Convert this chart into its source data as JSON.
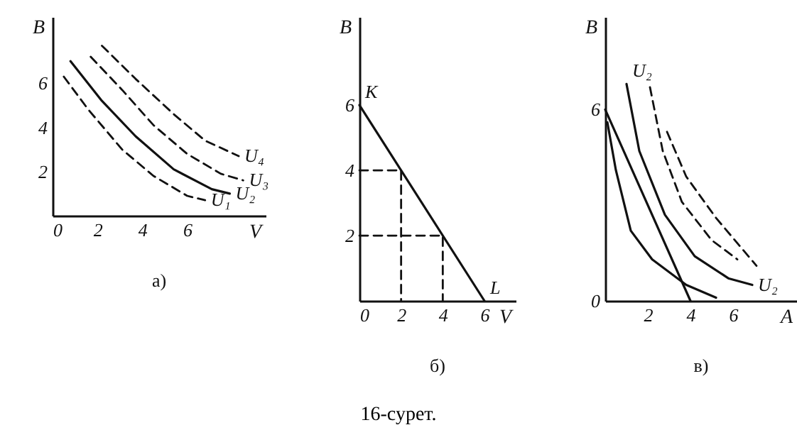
{
  "chart_data": [
    {
      "type": "line",
      "title": "а)",
      "xlabel": "V",
      "ylabel": "В",
      "xlim": [
        0,
        9.5
      ],
      "ylim": [
        0,
        9
      ],
      "xticks": [
        0,
        2,
        4,
        6
      ],
      "yticks": [
        2,
        4,
        6
      ],
      "grid": false,
      "marker": "none",
      "series": [
        {
          "name": "U₁",
          "color": "#111111",
          "line_style": "dashed",
          "x": [
            0.5,
            1.6,
            3.1,
            4.5,
            6.0,
            6.8
          ],
          "values": [
            6.3,
            4.8,
            3.0,
            1.8,
            0.9,
            0.7
          ]
        },
        {
          "name": "U₂",
          "color": "#111111",
          "line_style": "solid",
          "x": [
            0.8,
            2.2,
            3.7,
            5.4,
            7.1,
            7.9
          ],
          "values": [
            7.0,
            5.2,
            3.6,
            2.1,
            1.2,
            1.0
          ]
        },
        {
          "name": "U₃",
          "color": "#111111",
          "line_style": "dashed",
          "x": [
            1.7,
            3.1,
            4.5,
            6.0,
            7.5,
            8.5
          ],
          "values": [
            7.2,
            5.7,
            4.1,
            2.8,
            1.9,
            1.6
          ]
        },
        {
          "name": "U₄",
          "color": "#111111",
          "line_style": "dashed",
          "x": [
            2.2,
            3.7,
            5.4,
            6.8,
            8.3
          ],
          "values": [
            7.7,
            6.2,
            4.6,
            3.4,
            2.7
          ]
        }
      ]
    },
    {
      "type": "line",
      "title": "б)",
      "xlabel": "V",
      "ylabel": "В",
      "xlim": [
        0,
        7.5
      ],
      "ylim": [
        0,
        8.7
      ],
      "xticks": [
        0,
        2,
        4,
        6
      ],
      "yticks": [
        2,
        4,
        6
      ],
      "grid": false,
      "marker": "none",
      "annotations": [
        {
          "text": "K",
          "x": 0,
          "y": 6
        },
        {
          "text": "L",
          "x": 6,
          "y": 0
        },
        "16-сурет."
      ],
      "series": [
        {
          "color": "#111111",
          "line_style": "solid",
          "x": [
            0,
            6
          ],
          "values": [
            6,
            0
          ]
        },
        {
          "color": "#111111",
          "line_style": "dashed",
          "x": [
            0,
            2,
            2
          ],
          "values": [
            4,
            4,
            0
          ]
        },
        {
          "color": "#111111",
          "line_style": "dashed",
          "x": [
            0,
            4,
            4
          ],
          "values": [
            2,
            2,
            0
          ]
        }
      ]
    },
    {
      "type": "line",
      "title": "в)",
      "xlabel": "А",
      "ylabel": "В",
      "xlim": [
        0,
        9
      ],
      "ylim": [
        0,
        8.9
      ],
      "xticks": [
        2,
        4,
        6
      ],
      "yticks": [
        0,
        6
      ],
      "grid": false,
      "marker": "none",
      "annotations": [
        {
          "text": "U₂",
          "x": 1.0,
          "y": 6.8
        }
      ],
      "series": [
        {
          "name": "U₂",
          "color": "#111111",
          "line_style": "solid",
          "x": [
            1.0,
            1.6,
            2.8,
            4.2,
            5.8,
            6.9
          ],
          "values": [
            6.8,
            4.7,
            2.7,
            1.4,
            0.7,
            0.5
          ]
        },
        {
          "color": "#111111",
          "line_style": "solid",
          "x": [
            0.1,
            0.5,
            1.2,
            2.2,
            3.8,
            5.2
          ],
          "values": [
            5.6,
            4.1,
            2.2,
            1.3,
            0.5,
            0.1
          ]
        },
        {
          "color": "#111111",
          "line_style": "solid",
          "x": [
            0,
            4
          ],
          "values": [
            6,
            0
          ]
        },
        {
          "color": "#111111",
          "line_style": "dashed",
          "x": [
            2.1,
            2.7,
            3.6,
            5.0,
            6.2
          ],
          "values": [
            6.7,
            4.7,
            3.1,
            1.9,
            1.3
          ]
        },
        {
          "color": "#111111",
          "line_style": "dashed",
          "x": [
            2.9,
            3.8,
            5.2,
            7.1
          ],
          "values": [
            5.3,
            3.9,
            2.6,
            1.1
          ]
        }
      ]
    }
  ]
}
